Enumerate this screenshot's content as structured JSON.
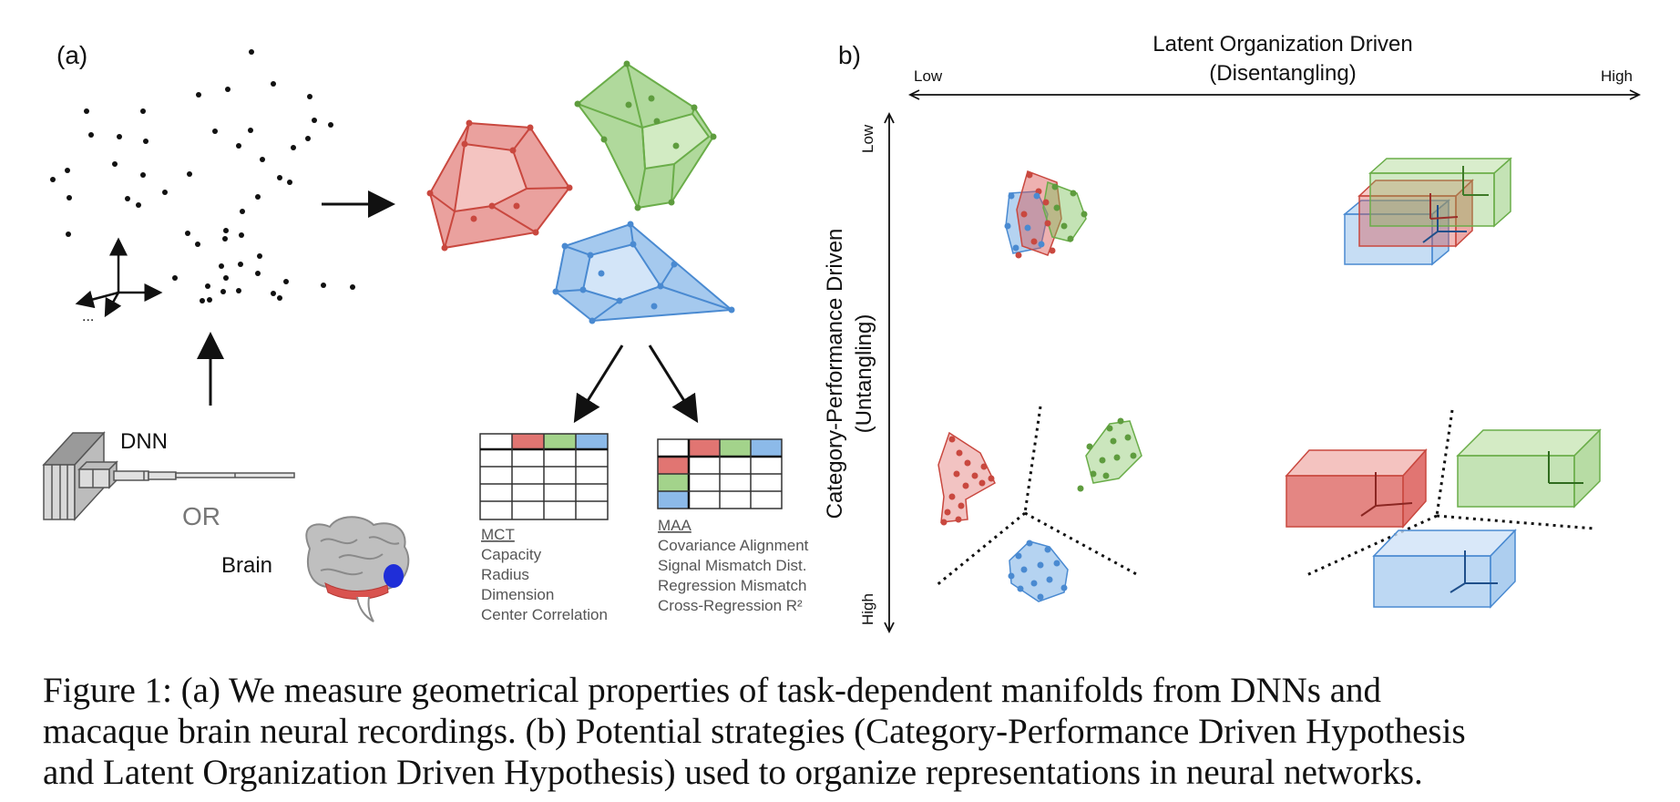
{
  "panel_a": {
    "label": "(a)",
    "dnn_label": "DNN",
    "or_label": "OR",
    "brain_label": "Brain",
    "axis_dots": "...",
    "table_mct": {
      "title": "MCT",
      "items": [
        "Capacity",
        "Radius",
        "Dimension",
        "Center Correlation"
      ]
    },
    "table_maa": {
      "title": "MAA",
      "items": [
        "Covariance Alignment",
        "Signal Mismatch Dist.",
        "Regression Mismatch",
        "Cross-Regression R²"
      ]
    }
  },
  "panel_b": {
    "label": "b)",
    "x_axis_title_line1": "Latent Organization Driven",
    "x_axis_title_line2": "(Disentangling)",
    "x_low": "Low",
    "x_high": "High",
    "y_axis_title_line1": "Category-Performance Driven",
    "y_axis_title_line2": "(Untangling)",
    "y_low": "Low",
    "y_high": "High"
  },
  "colors": {
    "red": "#d9534f",
    "green": "#7cc05a",
    "blue": "#5b9de0",
    "brain_highlight": "#1f2ed8"
  },
  "caption": {
    "line1": "Figure 1: (a) We measure geometrical properties of task-dependent manifolds from DNNs and",
    "line2": "macaque brain neural recordings. (b) Potential strategies (Category-Performance Driven Hypothesis",
    "line3": "and Latent Organization Driven Hypothesis) used to organize representations in neural networks."
  }
}
